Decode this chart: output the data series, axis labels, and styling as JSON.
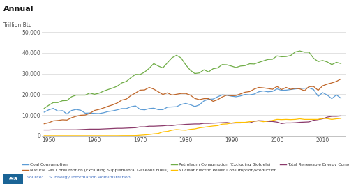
{
  "title": "Annual",
  "ylabel": "Trillion Btu",
  "source": "Source: U.S. Energy Information Administration",
  "xlim": [
    1948.5,
    2015
  ],
  "ylim": [
    0,
    52000
  ],
  "yticks": [
    0,
    10000,
    20000,
    30000,
    40000,
    50000
  ],
  "xticks": [
    1950,
    1960,
    1970,
    1980,
    1990,
    2000,
    2010
  ],
  "bg_color": "#ffffff",
  "plot_bg": "#ffffff",
  "grid_color": "#dddddd",
  "colors": {
    "coal": "#5b9bd5",
    "gas": "#c0672a",
    "petroleum": "#70ad47",
    "nuclear": "#ffc000",
    "renewable": "#8b3a6b"
  },
  "legend": [
    "Coal Consumption",
    "Natural Gas Consumption (Excluding Supplemental Gaseous Fuels)",
    "Petroleum Consumption (Excluding Biofuels)",
    "Nuclear Electric Power Consumption/Production",
    "Total Renewable Energy Consumption"
  ],
  "years": [
    1949,
    1950,
    1951,
    1952,
    1953,
    1954,
    1955,
    1956,
    1957,
    1958,
    1959,
    1960,
    1961,
    1962,
    1963,
    1964,
    1965,
    1966,
    1967,
    1968,
    1969,
    1970,
    1971,
    1972,
    1973,
    1974,
    1975,
    1976,
    1977,
    1978,
    1979,
    1980,
    1981,
    1982,
    1983,
    1984,
    1985,
    1986,
    1987,
    1988,
    1989,
    1990,
    1991,
    1992,
    1993,
    1994,
    1995,
    1996,
    1997,
    1998,
    1999,
    2000,
    2001,
    2002,
    2003,
    2004,
    2005,
    2006,
    2007,
    2008,
    2009,
    2010,
    2011,
    2012,
    2013,
    2014
  ],
  "coal": [
    11400,
    12500,
    13200,
    11900,
    12100,
    10500,
    12200,
    12700,
    12300,
    10900,
    11000,
    10800,
    10700,
    11100,
    11700,
    12000,
    12500,
    13100,
    13100,
    14000,
    14400,
    12700,
    12500,
    13100,
    13300,
    12600,
    12600,
    13800,
    13900,
    14000,
    15100,
    15600,
    15000,
    14100,
    14900,
    16800,
    17600,
    17700,
    18800,
    19700,
    19500,
    19100,
    18800,
    19200,
    19900,
    19700,
    20100,
    21200,
    21600,
    21200,
    21400,
    22600,
    21900,
    22000,
    22300,
    22600,
    22800,
    22900,
    23100,
    22300,
    19000,
    20800,
    19600,
    17900,
    19700,
    18100
  ],
  "gas": [
    5800,
    6300,
    7200,
    7400,
    7700,
    7600,
    8700,
    9400,
    9900,
    10000,
    10800,
    12200,
    12700,
    13400,
    14200,
    14900,
    15800,
    17200,
    17700,
    19400,
    20600,
    22000,
    22100,
    23300,
    22500,
    21200,
    19900,
    20700,
    19600,
    20000,
    20400,
    20400,
    19600,
    18000,
    17400,
    17900,
    17900,
    16600,
    17400,
    18700,
    19600,
    19300,
    19400,
    20200,
    21000,
    21300,
    22500,
    23300,
    23100,
    22800,
    22400,
    23800,
    22300,
    23300,
    22400,
    22900,
    22600,
    21700,
    23700,
    23800,
    21900,
    24100,
    24900,
    25500,
    26200,
    27400
  ],
  "petroleum": [
    13200,
    14700,
    16000,
    16000,
    16900,
    17000,
    18800,
    19600,
    19600,
    19600,
    20600,
    20000,
    20500,
    21500,
    22300,
    23000,
    23900,
    25500,
    26200,
    28000,
    29600,
    29500,
    30700,
    32500,
    34800,
    33600,
    32700,
    35200,
    37600,
    38800,
    37500,
    34200,
    31600,
    30000,
    30300,
    31800,
    30800,
    32300,
    32700,
    34300,
    34200,
    33600,
    32900,
    33600,
    33800,
    34700,
    34600,
    35400,
    36100,
    36800,
    36900,
    38500,
    38100,
    38200,
    38700,
    40400,
    40900,
    40300,
    40300,
    37400,
    35800,
    36300,
    35600,
    34300,
    35400,
    34800
  ],
  "nuclear": [
    0,
    0,
    0,
    0,
    0,
    0,
    0,
    0,
    0,
    0,
    0,
    0,
    0,
    0,
    0,
    0,
    0,
    40,
    50,
    60,
    80,
    240,
    400,
    600,
    900,
    1100,
    1900,
    2100,
    2700,
    3000,
    2800,
    2700,
    3100,
    3300,
    3800,
    4100,
    4400,
    4700,
    4900,
    5600,
    5700,
    6100,
    6500,
    6500,
    6500,
    6800,
    7100,
    7200,
    6800,
    7100,
    7400,
    7900,
    7800,
    7900,
    7800,
    7900,
    8200,
    7900,
    7900,
    7900,
    7900,
    8400,
    8300,
    7900,
    8200,
    8400
  ],
  "renewable": [
    2800,
    2800,
    2900,
    2900,
    2900,
    2900,
    2900,
    2900,
    3000,
    3100,
    3200,
    3200,
    3200,
    3300,
    3400,
    3500,
    3600,
    3600,
    3700,
    3800,
    3900,
    4300,
    4300,
    4600,
    4600,
    4700,
    4800,
    5000,
    4900,
    5200,
    5300,
    5500,
    5600,
    5700,
    5700,
    6000,
    6000,
    6100,
    6200,
    6300,
    6400,
    6100,
    6200,
    6200,
    6400,
    6200,
    7000,
    7300,
    7200,
    6900,
    6900,
    6600,
    5900,
    6200,
    6200,
    6300,
    6500,
    6600,
    6700,
    7500,
    7800,
    8200,
    9000,
    9400,
    9400,
    9600
  ]
}
